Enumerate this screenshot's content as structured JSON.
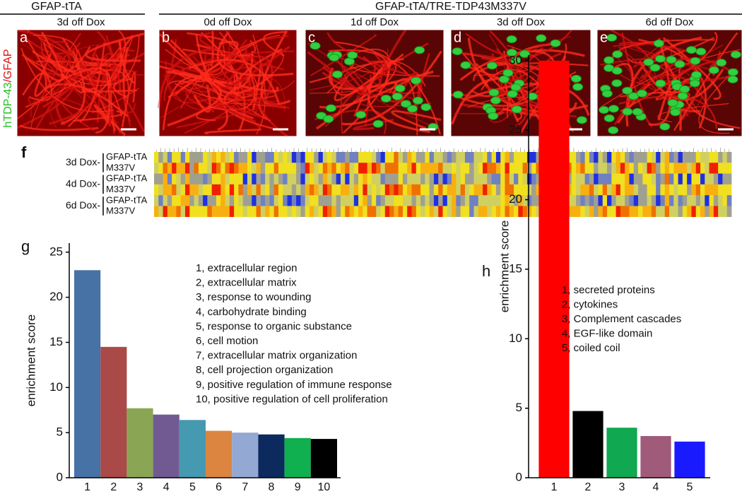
{
  "header": {
    "left": "GFAP-tTA",
    "right": "GFAP-tTA/TRE-TDP43M337V"
  },
  "stain": {
    "green": "hTDP-43",
    "red": "/GFAP"
  },
  "panels": [
    {
      "letter": "a",
      "label": "3d off Dox"
    },
    {
      "letter": "b",
      "label": "0d off Dox"
    },
    {
      "letter": "c",
      "label": "1d off Dox"
    },
    {
      "letter": "d",
      "label": "3d off Dox"
    },
    {
      "letter": "e",
      "label": "6d off Dox"
    }
  ],
  "heatmap": {
    "letter": "f",
    "groups": [
      {
        "label": "3d Dox-",
        "rows": [
          "GFAP-tTA",
          "M337V"
        ]
      },
      {
        "label": "4d Dox-",
        "rows": [
          "GFAP-tTA",
          "M337V"
        ]
      },
      {
        "label": "6d Dox-",
        "rows": [
          "GFAP-tTA",
          "M337V"
        ]
      }
    ]
  },
  "chart_data": [
    {
      "type": "bar",
      "title": "g",
      "ylabel": "enrichment score",
      "categories": [
        "1",
        "2",
        "3",
        "4",
        "5",
        "6",
        "7",
        "8",
        "9",
        "10"
      ],
      "values": [
        23,
        14.5,
        7.7,
        7.0,
        6.4,
        5.2,
        5.0,
        4.8,
        4.4,
        4.3
      ],
      "colors": [
        "#4672a5",
        "#aa4a48",
        "#8aa654",
        "#715a92",
        "#4599b1",
        "#db8540",
        "#93a8d2",
        "#0c2a5e",
        "#10b050",
        "#000000"
      ],
      "ylim": [
        0,
        26
      ],
      "yticks": [
        0,
        5,
        10,
        15,
        20,
        25
      ],
      "legend": [
        "1, extracellular region",
        "2, extracellular matrix",
        "3, response to wounding",
        "4, carbohydrate binding",
        "5, response to organic substance",
        "6, cell motion",
        "7, extracellular matrix organization",
        "8, cell projection organization",
        "9, positive regulation of immune response",
        "10, positive regulation of cell proliferation"
      ]
    },
    {
      "type": "bar",
      "title": "h",
      "ylabel": "enrichment score",
      "categories": [
        "1",
        "2",
        "3",
        "4",
        "5"
      ],
      "values": [
        30,
        4.8,
        3.6,
        3.0,
        2.6
      ],
      "colors": [
        "#ff0000",
        "#000000",
        "#10a850",
        "#a05a7a",
        "#1a1aff"
      ],
      "ylim": [
        0,
        30.4
      ],
      "yticks": [
        0,
        5,
        10,
        15,
        20,
        25,
        30
      ],
      "legend": [
        "1, secreted proteins",
        "2, cytokines",
        "3, Complement cascades",
        "4, EGF-like domain",
        "5, coiled coil"
      ]
    }
  ]
}
